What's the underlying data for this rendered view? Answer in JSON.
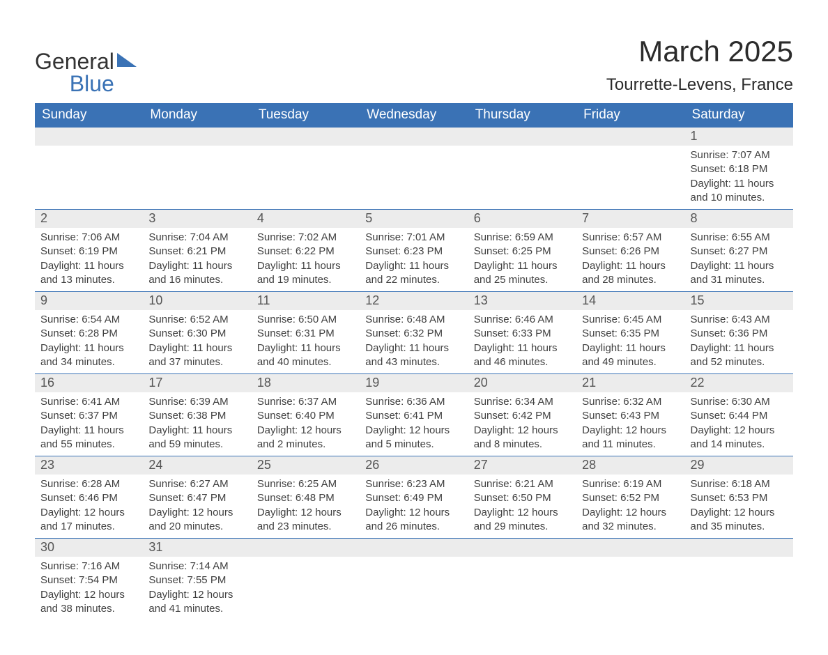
{
  "logo": {
    "word1": "General",
    "word2": "Blue"
  },
  "title": "March 2025",
  "location": "Tourrette-Levens, France",
  "colors": {
    "header_bg": "#3a72b5",
    "header_fg": "#ffffff",
    "daynum_bg": "#ececec",
    "row_border": "#3a72b5",
    "body_text": "#404040"
  },
  "fonts": {
    "title_size": 42,
    "subtitle_size": 24,
    "dayhead_size": 19,
    "body_size": 15
  },
  "day_labels": [
    "Sunday",
    "Monday",
    "Tuesday",
    "Wednesday",
    "Thursday",
    "Friday",
    "Saturday"
  ],
  "weeks": [
    [
      {
        "n": "",
        "sr": "",
        "ss": "",
        "dl": ""
      },
      {
        "n": "",
        "sr": "",
        "ss": "",
        "dl": ""
      },
      {
        "n": "",
        "sr": "",
        "ss": "",
        "dl": ""
      },
      {
        "n": "",
        "sr": "",
        "ss": "",
        "dl": ""
      },
      {
        "n": "",
        "sr": "",
        "ss": "",
        "dl": ""
      },
      {
        "n": "",
        "sr": "",
        "ss": "",
        "dl": ""
      },
      {
        "n": "1",
        "sr": "Sunrise: 7:07 AM",
        "ss": "Sunset: 6:18 PM",
        "dl": "Daylight: 11 hours and 10 minutes."
      }
    ],
    [
      {
        "n": "2",
        "sr": "Sunrise: 7:06 AM",
        "ss": "Sunset: 6:19 PM",
        "dl": "Daylight: 11 hours and 13 minutes."
      },
      {
        "n": "3",
        "sr": "Sunrise: 7:04 AM",
        "ss": "Sunset: 6:21 PM",
        "dl": "Daylight: 11 hours and 16 minutes."
      },
      {
        "n": "4",
        "sr": "Sunrise: 7:02 AM",
        "ss": "Sunset: 6:22 PM",
        "dl": "Daylight: 11 hours and 19 minutes."
      },
      {
        "n": "5",
        "sr": "Sunrise: 7:01 AM",
        "ss": "Sunset: 6:23 PM",
        "dl": "Daylight: 11 hours and 22 minutes."
      },
      {
        "n": "6",
        "sr": "Sunrise: 6:59 AM",
        "ss": "Sunset: 6:25 PM",
        "dl": "Daylight: 11 hours and 25 minutes."
      },
      {
        "n": "7",
        "sr": "Sunrise: 6:57 AM",
        "ss": "Sunset: 6:26 PM",
        "dl": "Daylight: 11 hours and 28 minutes."
      },
      {
        "n": "8",
        "sr": "Sunrise: 6:55 AM",
        "ss": "Sunset: 6:27 PM",
        "dl": "Daylight: 11 hours and 31 minutes."
      }
    ],
    [
      {
        "n": "9",
        "sr": "Sunrise: 6:54 AM",
        "ss": "Sunset: 6:28 PM",
        "dl": "Daylight: 11 hours and 34 minutes."
      },
      {
        "n": "10",
        "sr": "Sunrise: 6:52 AM",
        "ss": "Sunset: 6:30 PM",
        "dl": "Daylight: 11 hours and 37 minutes."
      },
      {
        "n": "11",
        "sr": "Sunrise: 6:50 AM",
        "ss": "Sunset: 6:31 PM",
        "dl": "Daylight: 11 hours and 40 minutes."
      },
      {
        "n": "12",
        "sr": "Sunrise: 6:48 AM",
        "ss": "Sunset: 6:32 PM",
        "dl": "Daylight: 11 hours and 43 minutes."
      },
      {
        "n": "13",
        "sr": "Sunrise: 6:46 AM",
        "ss": "Sunset: 6:33 PM",
        "dl": "Daylight: 11 hours and 46 minutes."
      },
      {
        "n": "14",
        "sr": "Sunrise: 6:45 AM",
        "ss": "Sunset: 6:35 PM",
        "dl": "Daylight: 11 hours and 49 minutes."
      },
      {
        "n": "15",
        "sr": "Sunrise: 6:43 AM",
        "ss": "Sunset: 6:36 PM",
        "dl": "Daylight: 11 hours and 52 minutes."
      }
    ],
    [
      {
        "n": "16",
        "sr": "Sunrise: 6:41 AM",
        "ss": "Sunset: 6:37 PM",
        "dl": "Daylight: 11 hours and 55 minutes."
      },
      {
        "n": "17",
        "sr": "Sunrise: 6:39 AM",
        "ss": "Sunset: 6:38 PM",
        "dl": "Daylight: 11 hours and 59 minutes."
      },
      {
        "n": "18",
        "sr": "Sunrise: 6:37 AM",
        "ss": "Sunset: 6:40 PM",
        "dl": "Daylight: 12 hours and 2 minutes."
      },
      {
        "n": "19",
        "sr": "Sunrise: 6:36 AM",
        "ss": "Sunset: 6:41 PM",
        "dl": "Daylight: 12 hours and 5 minutes."
      },
      {
        "n": "20",
        "sr": "Sunrise: 6:34 AM",
        "ss": "Sunset: 6:42 PM",
        "dl": "Daylight: 12 hours and 8 minutes."
      },
      {
        "n": "21",
        "sr": "Sunrise: 6:32 AM",
        "ss": "Sunset: 6:43 PM",
        "dl": "Daylight: 12 hours and 11 minutes."
      },
      {
        "n": "22",
        "sr": "Sunrise: 6:30 AM",
        "ss": "Sunset: 6:44 PM",
        "dl": "Daylight: 12 hours and 14 minutes."
      }
    ],
    [
      {
        "n": "23",
        "sr": "Sunrise: 6:28 AM",
        "ss": "Sunset: 6:46 PM",
        "dl": "Daylight: 12 hours and 17 minutes."
      },
      {
        "n": "24",
        "sr": "Sunrise: 6:27 AM",
        "ss": "Sunset: 6:47 PM",
        "dl": "Daylight: 12 hours and 20 minutes."
      },
      {
        "n": "25",
        "sr": "Sunrise: 6:25 AM",
        "ss": "Sunset: 6:48 PM",
        "dl": "Daylight: 12 hours and 23 minutes."
      },
      {
        "n": "26",
        "sr": "Sunrise: 6:23 AM",
        "ss": "Sunset: 6:49 PM",
        "dl": "Daylight: 12 hours and 26 minutes."
      },
      {
        "n": "27",
        "sr": "Sunrise: 6:21 AM",
        "ss": "Sunset: 6:50 PM",
        "dl": "Daylight: 12 hours and 29 minutes."
      },
      {
        "n": "28",
        "sr": "Sunrise: 6:19 AM",
        "ss": "Sunset: 6:52 PM",
        "dl": "Daylight: 12 hours and 32 minutes."
      },
      {
        "n": "29",
        "sr": "Sunrise: 6:18 AM",
        "ss": "Sunset: 6:53 PM",
        "dl": "Daylight: 12 hours and 35 minutes."
      }
    ],
    [
      {
        "n": "30",
        "sr": "Sunrise: 7:16 AM",
        "ss": "Sunset: 7:54 PM",
        "dl": "Daylight: 12 hours and 38 minutes."
      },
      {
        "n": "31",
        "sr": "Sunrise: 7:14 AM",
        "ss": "Sunset: 7:55 PM",
        "dl": "Daylight: 12 hours and 41 minutes."
      },
      {
        "n": "",
        "sr": "",
        "ss": "",
        "dl": ""
      },
      {
        "n": "",
        "sr": "",
        "ss": "",
        "dl": ""
      },
      {
        "n": "",
        "sr": "",
        "ss": "",
        "dl": ""
      },
      {
        "n": "",
        "sr": "",
        "ss": "",
        "dl": ""
      },
      {
        "n": "",
        "sr": "",
        "ss": "",
        "dl": ""
      }
    ]
  ]
}
